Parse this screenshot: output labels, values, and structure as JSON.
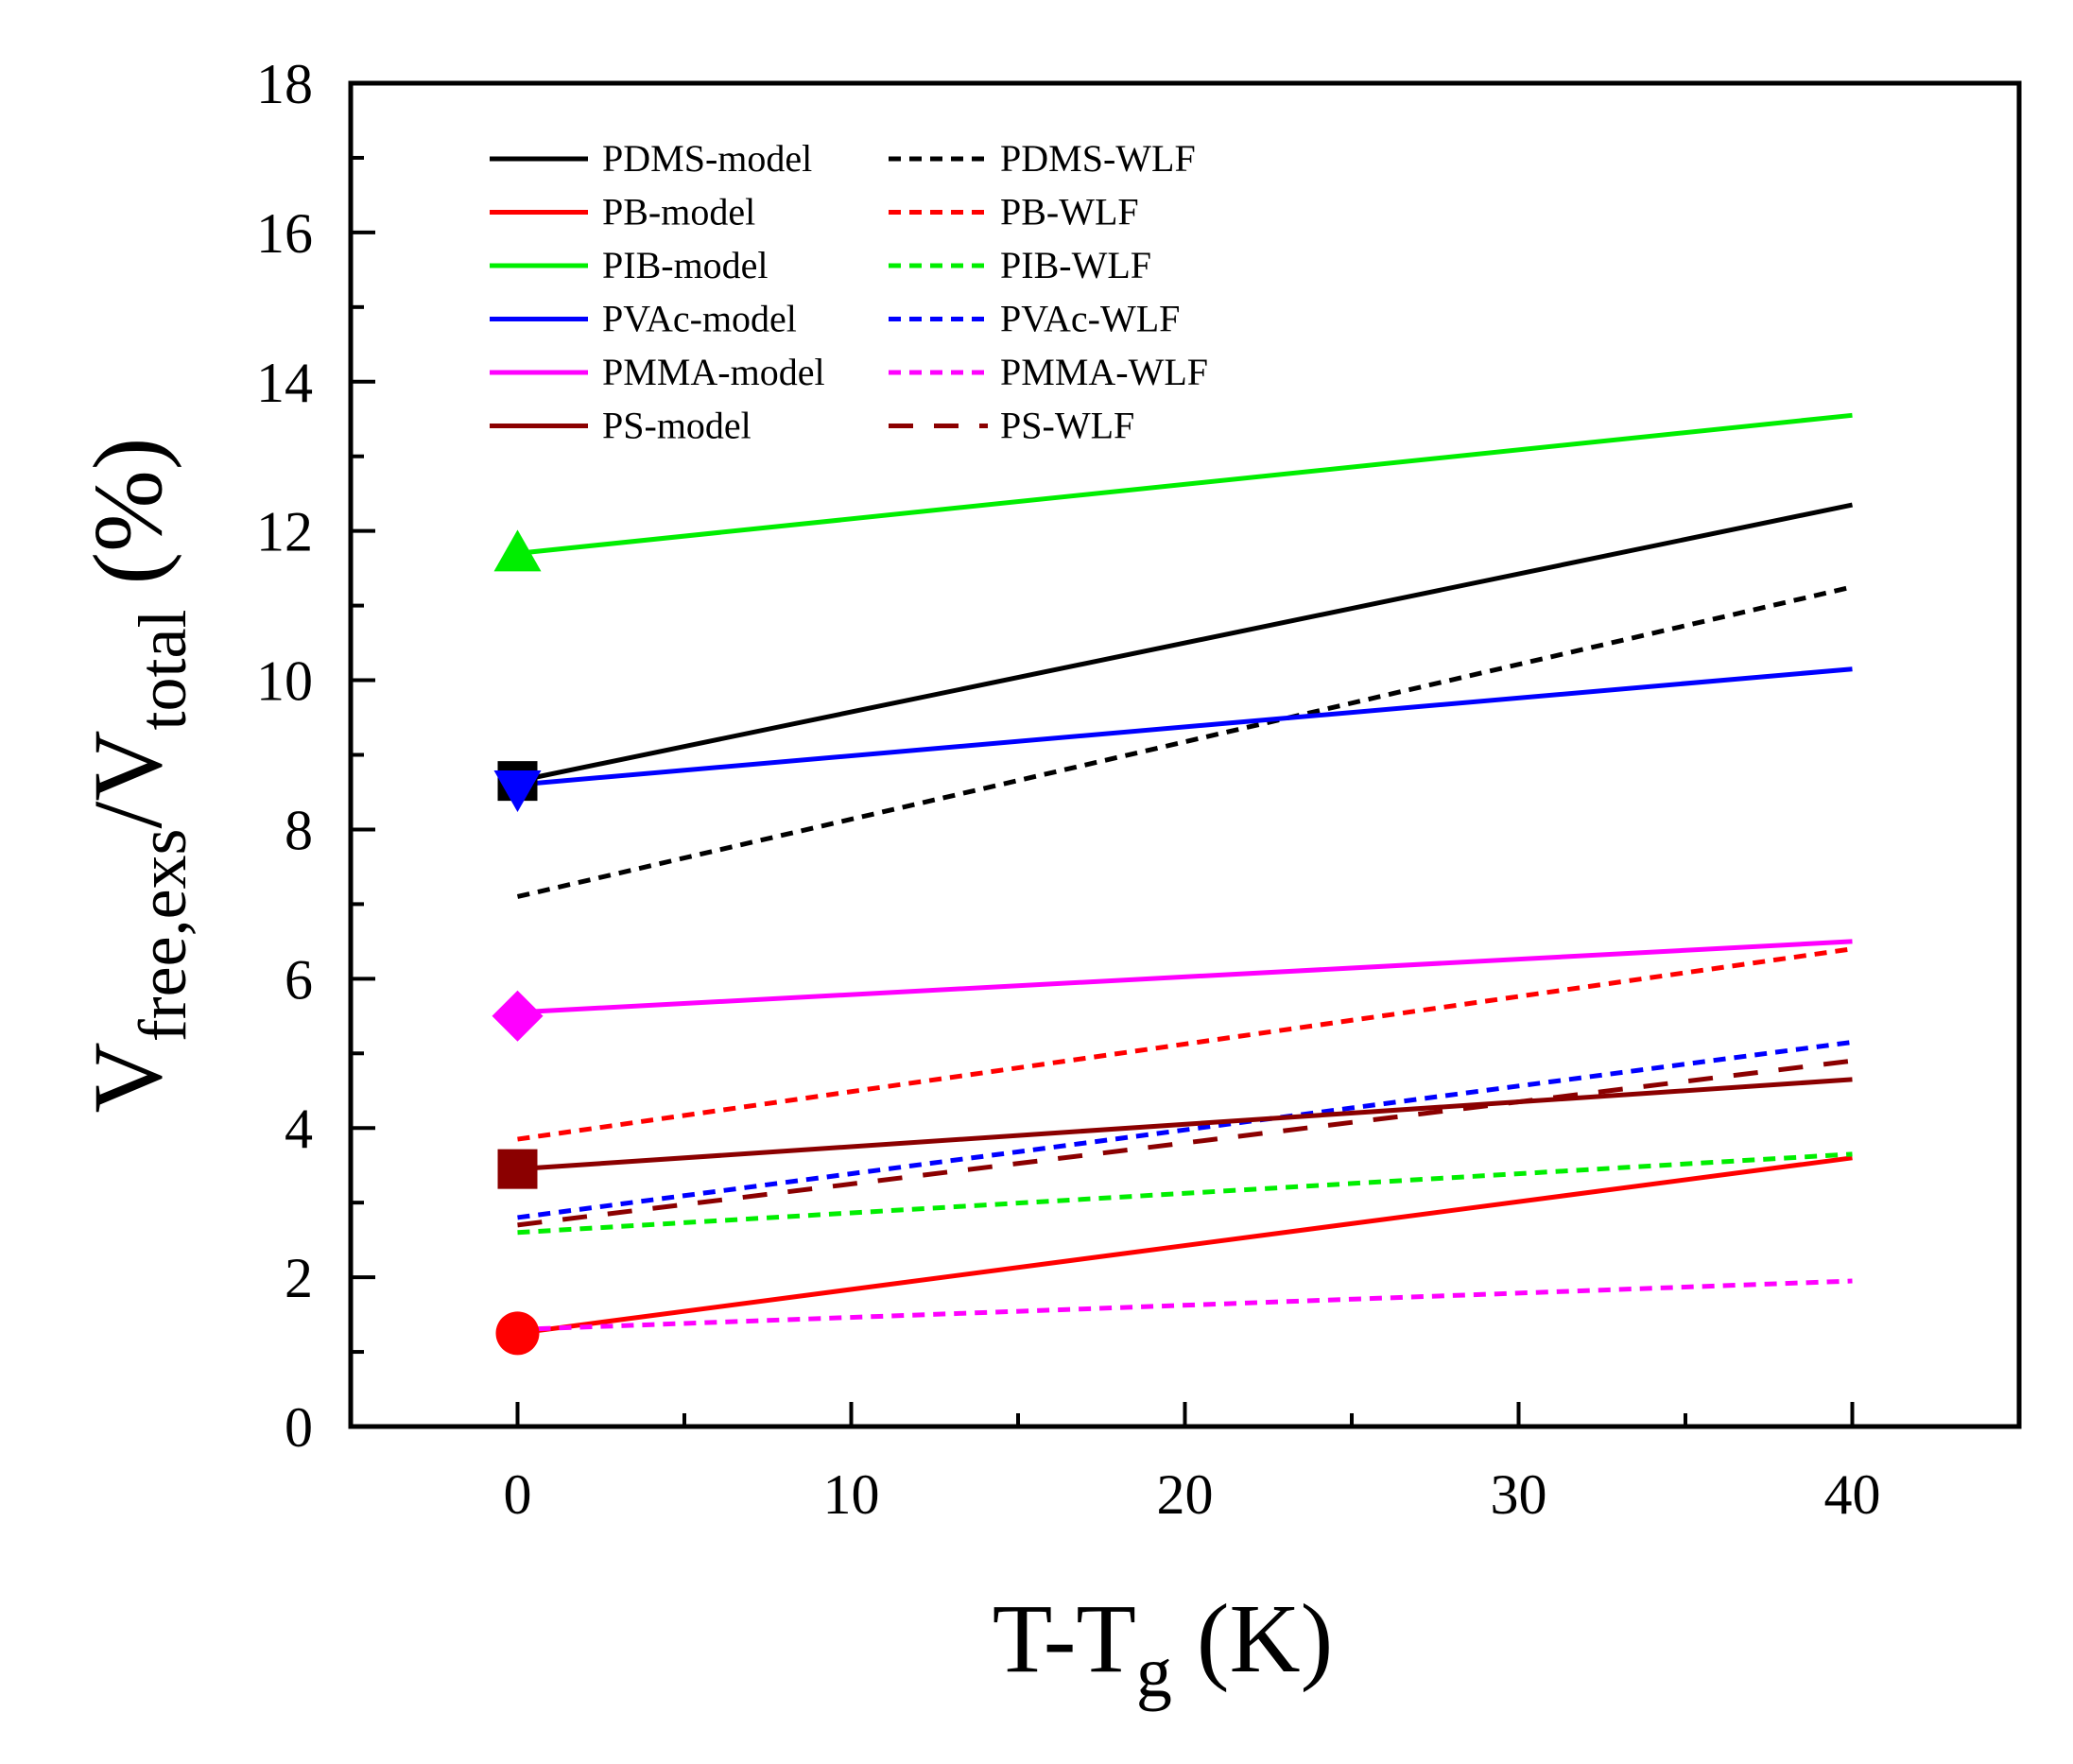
{
  "chart_data": {
    "type": "line",
    "xlabel": {
      "main": "T-T",
      "sub": "g",
      "unit": " (K)"
    },
    "ylabel": {
      "main": "V",
      "sub1": "free,exs",
      "slash": "/V",
      "sub2": "total",
      "unit": " (%)"
    },
    "xlim": [
      -5,
      45
    ],
    "ylim": [
      0,
      18
    ],
    "xticks": [
      0,
      10,
      20,
      30,
      40
    ],
    "yticks": [
      0,
      2,
      4,
      6,
      8,
      10,
      12,
      14,
      16,
      18
    ],
    "xtick_labels": [
      "0",
      "10",
      "20",
      "30",
      "40"
    ],
    "ytick_labels": [
      "0",
      "2",
      "4",
      "6",
      "8",
      "10",
      "12",
      "14",
      "16",
      "18"
    ],
    "series": [
      {
        "name": "PDMS-model",
        "style": "solid",
        "color": "#000000",
        "x": [
          0,
          40
        ],
        "y": [
          8.65,
          12.35
        ],
        "marker": "square",
        "marker_point": [
          0,
          8.65
        ]
      },
      {
        "name": "PDMS-WLF",
        "style": "dotted",
        "color": "#000000",
        "x": [
          0,
          40
        ],
        "y": [
          7.1,
          11.25
        ]
      },
      {
        "name": "PB-model",
        "style": "solid",
        "color": "#ff0000",
        "x": [
          0,
          40
        ],
        "y": [
          1.25,
          3.6
        ],
        "marker": "circle",
        "marker_point": [
          0,
          1.25
        ]
      },
      {
        "name": "PB-WLF",
        "style": "dotted",
        "color": "#ff0000",
        "x": [
          0,
          40
        ],
        "y": [
          3.85,
          6.4
        ]
      },
      {
        "name": "PIB-model",
        "style": "solid",
        "color": "#00ee00",
        "x": [
          0,
          40
        ],
        "y": [
          11.7,
          13.55
        ],
        "marker": "triangle-up",
        "marker_point": [
          0,
          11.7
        ]
      },
      {
        "name": "PIB-WLF",
        "style": "dotted",
        "color": "#00ee00",
        "x": [
          0,
          40
        ],
        "y": [
          2.6,
          3.65
        ]
      },
      {
        "name": "PVAc-model",
        "style": "solid",
        "color": "#0000ff",
        "x": [
          0,
          40
        ],
        "y": [
          8.6,
          10.15
        ],
        "marker": "triangle-down",
        "marker_point": [
          0,
          8.55
        ]
      },
      {
        "name": "PVAc-WLF",
        "style": "dotted",
        "color": "#0000ff",
        "x": [
          0,
          40
        ],
        "y": [
          2.8,
          5.15
        ]
      },
      {
        "name": "PMMA-model",
        "style": "solid",
        "color": "#ff00ff",
        "x": [
          0,
          40
        ],
        "y": [
          5.55,
          6.5
        ],
        "marker": "diamond",
        "marker_point": [
          0,
          5.5
        ]
      },
      {
        "name": "PMMA-WLF",
        "style": "dotted",
        "color": "#ff00ff",
        "x": [
          0,
          40
        ],
        "y": [
          1.3,
          1.95
        ]
      },
      {
        "name": "PS-model",
        "style": "solid",
        "color": "#8b0000",
        "x": [
          0,
          40
        ],
        "y": [
          3.45,
          4.65
        ],
        "marker": "square",
        "marker_point": [
          0,
          3.45
        ]
      },
      {
        "name": "PS-WLF",
        "style": "dashed",
        "color": "#8b0000",
        "x": [
          0,
          40
        ],
        "y": [
          2.7,
          4.9
        ]
      }
    ],
    "legend": {
      "placement": "top-left",
      "columns": 2,
      "entries": [
        [
          "PDMS-model",
          "PDMS-WLF"
        ],
        [
          "PB-model",
          "PB-WLF"
        ],
        [
          "PIB-model",
          "PIB-WLF"
        ],
        [
          "PVAc-model",
          "PVAc-WLF"
        ],
        [
          "PMMA-model",
          "PMMA-WLF"
        ],
        [
          "PS-model",
          "PS-WLF"
        ]
      ]
    }
  }
}
